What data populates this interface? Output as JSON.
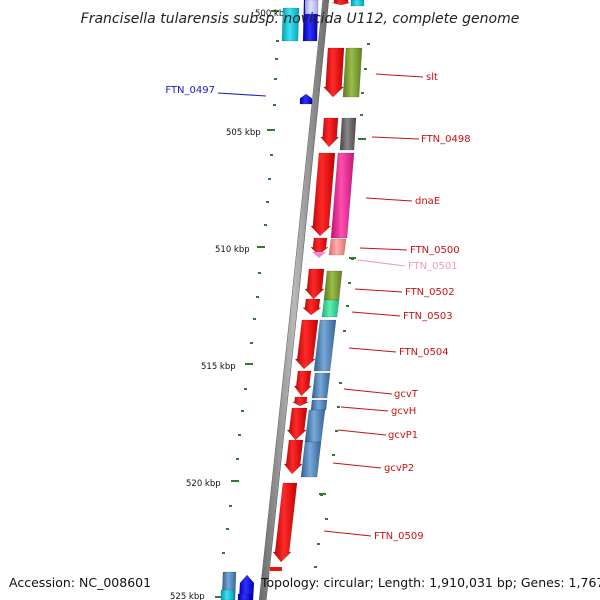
{
  "title": "Francisella tularensis subsp. novicida U112, complete genome",
  "accession_text": "Accession: NC_008601",
  "topology_text": "Topology: circular; Length: 1,910,031 bp; Genes: 1,767",
  "colors": {
    "backbone": "#8a8a8a",
    "tick": "#2e7d2e",
    "label_line": "#cc1111",
    "label_text": "#cc1111",
    "cds": "#ee1111"
  },
  "position_ticks": [
    {
      "label": "500 kbp"
    },
    {
      "label": "505 kbp"
    },
    {
      "label": "510 kbp"
    },
    {
      "label": "515 kbp"
    },
    {
      "label": "520 kbp"
    },
    {
      "label": "525 kbp"
    }
  ],
  "gene_labels": [
    {
      "name": "FTN_0497",
      "color": "#1a1acc"
    },
    {
      "name": "slt",
      "color": "#cc1111"
    },
    {
      "name": "FTN_0498",
      "color": "#cc1111"
    },
    {
      "name": "dnaE",
      "color": "#cc1111"
    },
    {
      "name": "FTN_0500",
      "color": "#cc1111"
    },
    {
      "name": "FTN_0501",
      "color": "#f09ac0"
    },
    {
      "name": "FTN_0502",
      "color": "#cc1111"
    },
    {
      "name": "FTN_0503",
      "color": "#cc1111"
    },
    {
      "name": "FTN_0504",
      "color": "#cc1111"
    },
    {
      "name": "gcvT",
      "color": "#cc1111"
    },
    {
      "name": "gcvH",
      "color": "#cc1111"
    },
    {
      "name": "gcvP1",
      "color": "#cc1111"
    },
    {
      "name": "gcvP2",
      "color": "#cc1111"
    },
    {
      "name": "FTN_0509",
      "color": "#cc1111"
    }
  ]
}
